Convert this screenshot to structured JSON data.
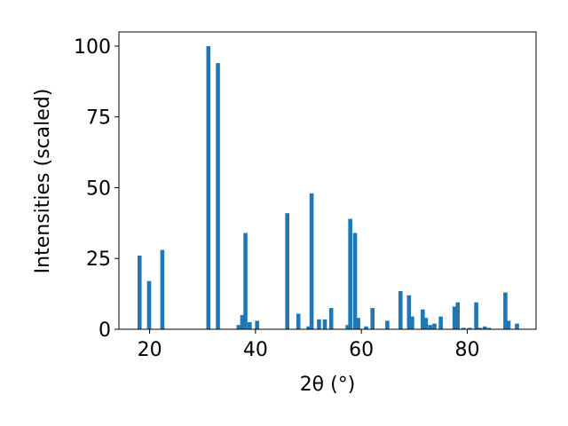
{
  "chart_data": {
    "type": "bar",
    "xlabel": "2θ (°)",
    "ylabel": "Intensities (scaled)",
    "xlim": [
      14.2,
      93.0
    ],
    "ylim": [
      0,
      105
    ],
    "xticks": [
      20,
      40,
      60,
      80
    ],
    "yticks": [
      0,
      25,
      50,
      75,
      100
    ],
    "bar_color": "#1f77b4",
    "grid": false,
    "legend": "none",
    "x": [
      18.1,
      19.9,
      22.4,
      31.1,
      32.9,
      36.8,
      37.5,
      38.1,
      38.9,
      40.3,
      46.0,
      48.1,
      50.0,
      50.6,
      52.0,
      53.1,
      54.3,
      57.4,
      57.9,
      58.8,
      59.4,
      60.9,
      62.1,
      64.9,
      67.4,
      69.0,
      69.6,
      71.6,
      72.2,
      73.0,
      73.8,
      75.0,
      77.6,
      78.2,
      79.3,
      80.5,
      81.7,
      82.4,
      83.3,
      84.1,
      87.2,
      87.8,
      89.4
    ],
    "values": [
      26,
      17,
      28,
      100,
      94,
      1.5,
      5,
      34,
      2.5,
      3,
      41,
      5.5,
      1,
      48,
      3.5,
      3.5,
      7.5,
      1.5,
      39,
      34,
      4,
      1,
      7.5,
      3,
      13.5,
      12,
      4.5,
      7,
      4,
      1.5,
      2,
      4.5,
      8,
      9.5,
      0.5,
      0.5,
      9.5,
      0.5,
      1,
      0.5,
      13,
      3,
      2
    ]
  }
}
